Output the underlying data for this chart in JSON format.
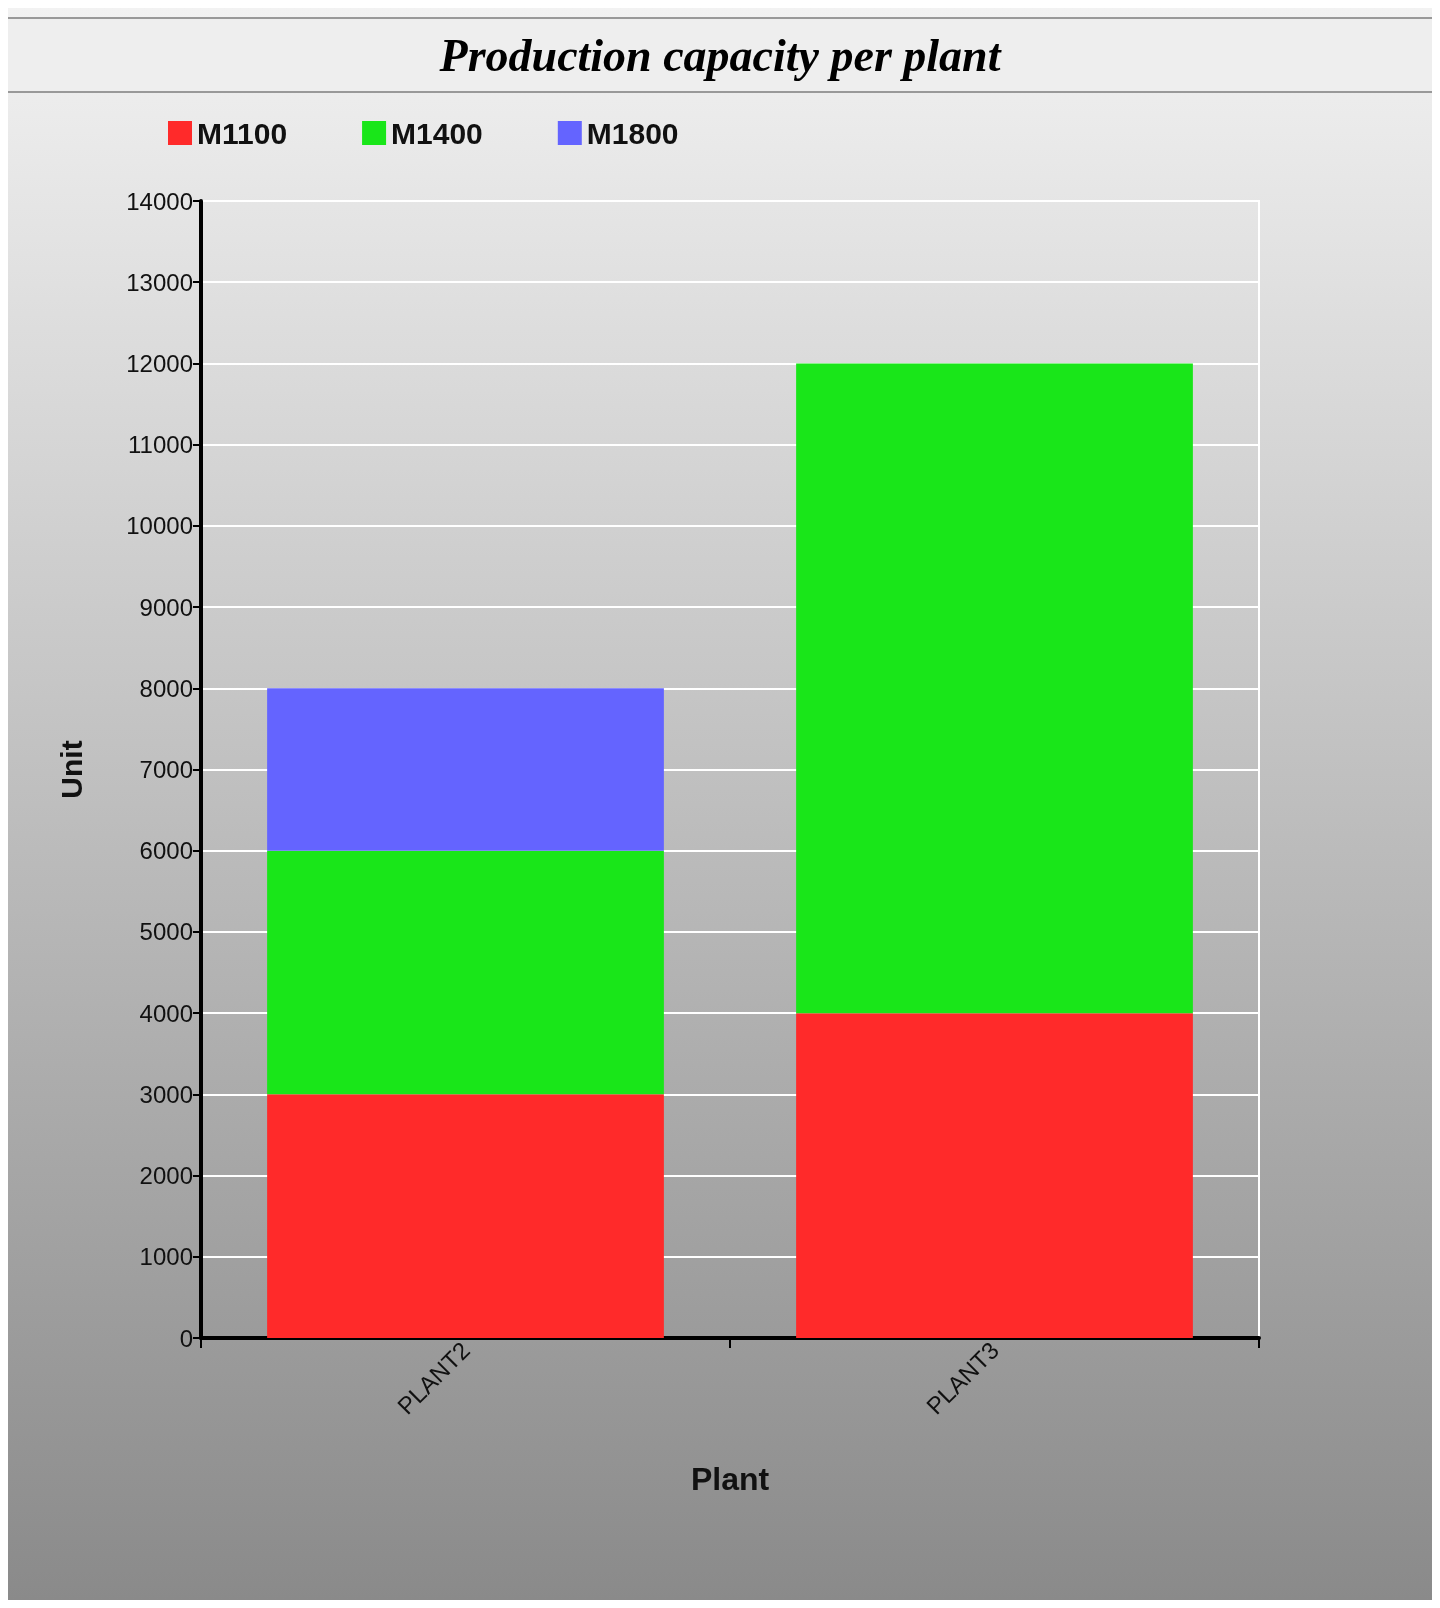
{
  "chart_data": {
    "type": "bar",
    "title": "Production capacity per plant",
    "xlabel": "Plant",
    "ylabel": "Unit",
    "categories": [
      "PLANT2",
      "PLANT3"
    ],
    "stacked": true,
    "series": [
      {
        "name": "M1100",
        "color": "#ff2a2a",
        "values": [
          3000,
          4000
        ]
      },
      {
        "name": "M1400",
        "color": "#19e619",
        "values": [
          3000,
          8000
        ]
      },
      {
        "name": "M1800",
        "color": "#6464ff",
        "values": [
          2000,
          0
        ]
      }
    ],
    "ylim": [
      0,
      14000
    ],
    "yticks": [
      0,
      1000,
      2000,
      3000,
      4000,
      5000,
      6000,
      7000,
      8000,
      9000,
      10000,
      11000,
      12000,
      13000,
      14000
    ],
    "grid": "y",
    "legend": "top left"
  }
}
